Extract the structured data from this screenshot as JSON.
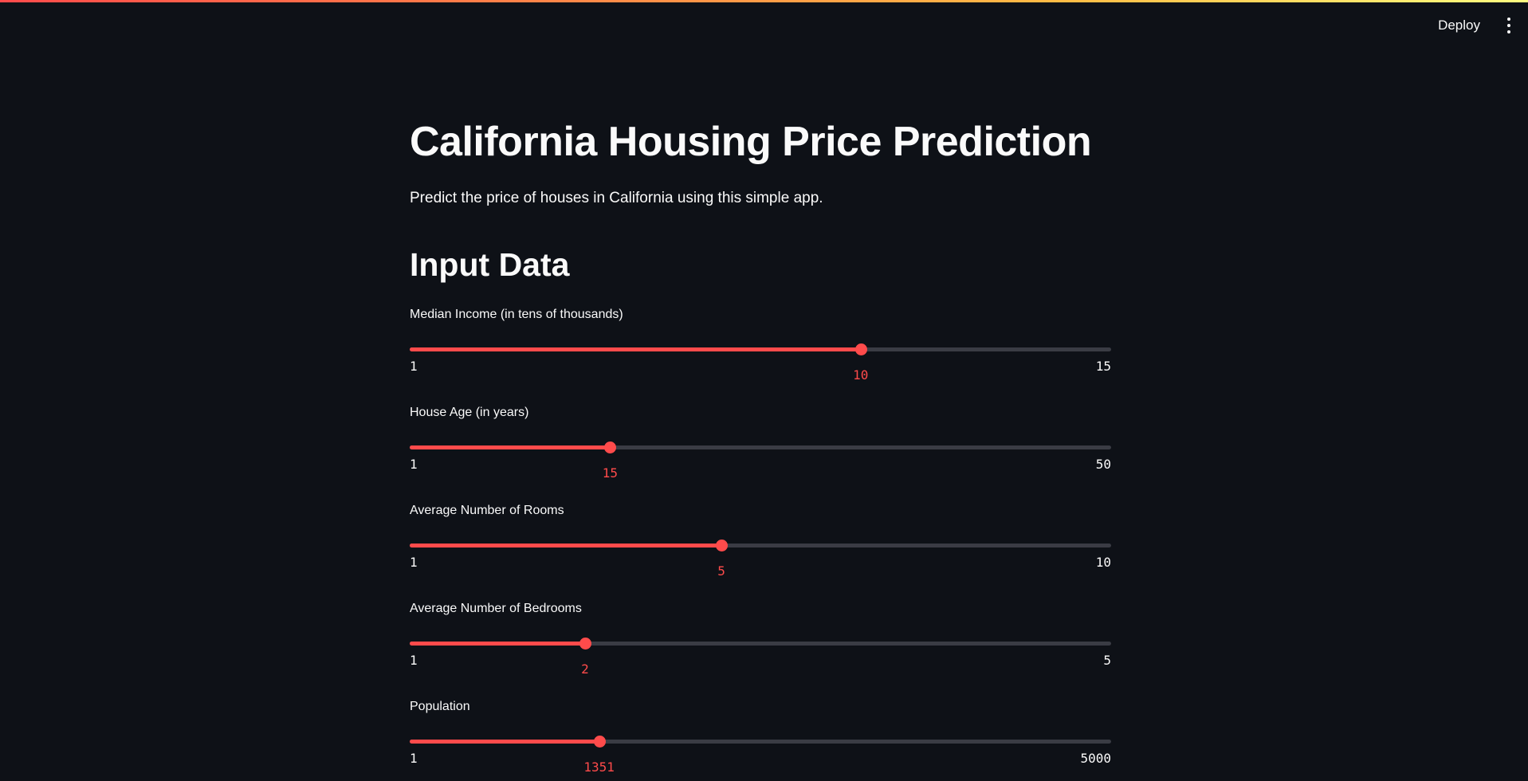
{
  "header": {
    "deploy_label": "Deploy",
    "menu_icon": "vertical-ellipsis-icon"
  },
  "page": {
    "title": "California Housing Price Prediction",
    "subtitle": "Predict the price of houses in California using this simple app.",
    "section_heading": "Input Data"
  },
  "colors": {
    "background": "#0e1117",
    "accent": "#ff4b4b",
    "track": "#3a3c44",
    "text": "#fafafa"
  },
  "sliders": [
    {
      "label": "Median Income (in tens of thousands)",
      "value": 10,
      "min": 1,
      "max": 15
    },
    {
      "label": "House Age (in years)",
      "value": 15,
      "min": 1,
      "max": 50
    },
    {
      "label": "Average Number of Rooms",
      "value": 5,
      "min": 1,
      "max": 10
    },
    {
      "label": "Average Number of Bedrooms",
      "value": 2,
      "min": 1,
      "max": 5
    },
    {
      "label": "Population",
      "value": 1351,
      "min": 1,
      "max": 5000
    }
  ]
}
